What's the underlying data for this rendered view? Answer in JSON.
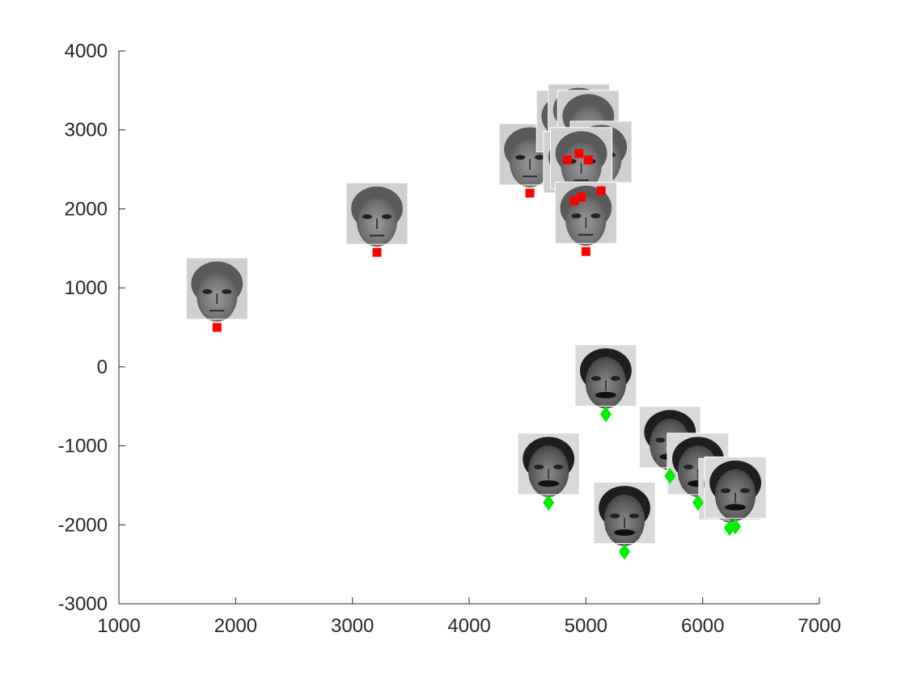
{
  "chart_data": {
    "type": "scatter",
    "title": "",
    "xlabel": "",
    "ylabel": "",
    "xlim": [
      1000,
      7000
    ],
    "ylim": [
      -3000,
      4000
    ],
    "x_ticks": [
      1000,
      2000,
      3000,
      4000,
      5000,
      6000,
      7000
    ],
    "y_ticks": [
      -3000,
      -2000,
      -1000,
      0,
      1000,
      2000,
      3000,
      4000
    ],
    "x_tick_labels": [
      "1000",
      "2000",
      "3000",
      "4000",
      "5000",
      "6000",
      "7000"
    ],
    "y_tick_labels": [
      "-3000",
      "-2000",
      "-1000",
      "0",
      "1000",
      "2000",
      "3000",
      "4000"
    ],
    "grid": false,
    "series": [
      {
        "marker": "square",
        "color": "#ff0000",
        "thumbnail_tone": "light-haired faces",
        "points": [
          [
            1840,
            500
          ],
          [
            3210,
            1450
          ],
          [
            4520,
            2200
          ],
          [
            4840,
            2620
          ],
          [
            4940,
            2700
          ],
          [
            5020,
            2620
          ],
          [
            5130,
            2230
          ],
          [
            4900,
            2100
          ],
          [
            4960,
            2150
          ],
          [
            5000,
            1460
          ]
        ]
      },
      {
        "marker": "diamond",
        "color": "#00ee00",
        "thumbnail_tone": "dark-haired faces",
        "points": [
          [
            5170,
            -600
          ],
          [
            4680,
            -1720
          ],
          [
            5330,
            -2340
          ],
          [
            5720,
            -1380
          ],
          [
            5960,
            -1720
          ],
          [
            6230,
            -2040
          ],
          [
            6280,
            -2020
          ]
        ]
      }
    ]
  }
}
